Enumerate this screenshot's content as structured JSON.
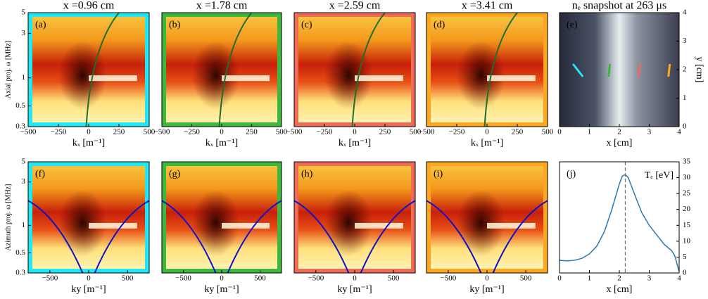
{
  "chart_data": [
    {
      "type": "heatmap",
      "title": "x =0.96 cm",
      "label": "(a)",
      "xlabel": "kₓ [m⁻¹]",
      "ylabel": "Axial proj. ω [MHz]",
      "frame_color": "#22e6f2",
      "curve_color": "#1f6e2a",
      "curve": "parabola",
      "xlim": [
        -500,
        500
      ],
      "xticks": [
        {
          "value": -500,
          "label": "−500"
        },
        {
          "value": -250,
          "label": "−250"
        },
        0,
        250,
        500
      ],
      "ylim": [
        0.3,
        5
      ],
      "yticks": [
        0.3,
        0.5,
        1,
        3,
        5
      ],
      "log_y": true
    },
    {
      "type": "heatmap",
      "title": "x =1.78 cm",
      "label": "(b)",
      "xlabel": "kₓ [m⁻¹]",
      "frame_color": "#3cb83c",
      "curve_color": "#1f6e2a",
      "curve": "parabola",
      "xlim": [
        -500,
        500
      ],
      "xticks": [
        {
          "value": -500,
          "label": "−500"
        },
        {
          "value": -250,
          "label": "−250"
        },
        0,
        250,
        500
      ],
      "ylim": [
        0.3,
        5
      ],
      "yticks": [
        0.3,
        0.5,
        1,
        3,
        5
      ],
      "log_y": true
    },
    {
      "type": "heatmap",
      "title": "x =2.59 cm",
      "label": "(c)",
      "xlabel": "kₓ [m⁻¹]",
      "frame_color": "#f06a58",
      "curve_color": "#1f6e2a",
      "curve": "parabola",
      "xlim": [
        -500,
        500
      ],
      "xticks": [
        {
          "value": -500,
          "label": "−500"
        },
        {
          "value": -250,
          "label": "−250"
        },
        0,
        250,
        500
      ],
      "ylim": [
        0.3,
        5
      ],
      "yticks": [
        0.3,
        0.5,
        1,
        3,
        5
      ],
      "log_y": true
    },
    {
      "type": "heatmap",
      "title": "x =3.41 cm",
      "label": "(d)",
      "xlabel": "kₓ [m⁻¹]",
      "frame_color": "#ffa51e",
      "curve_color": "#1f6e2a",
      "curve": "parabola",
      "xlim": [
        -500,
        500
      ],
      "xticks": [
        {
          "value": -500,
          "label": "−500"
        },
        {
          "value": -250,
          "label": "−250"
        },
        0,
        250,
        500
      ],
      "ylim": [
        0.3,
        5
      ],
      "yticks": [
        0.3,
        0.5,
        1,
        3,
        5
      ],
      "log_y": true
    },
    {
      "type": "image",
      "title": "nₑ snapshot at 263 μs",
      "label": "(e)",
      "xlabel": "x [cm]",
      "ylabel": "y [cm]",
      "y_axis": "right",
      "arrow_colors": [
        "#22e6f2",
        "#3cb83c",
        "#f06a58",
        "#ffa51e"
      ],
      "xlim": [
        0,
        4
      ],
      "xticks": [
        0,
        1,
        2,
        3,
        4
      ],
      "ylim": [
        0,
        4
      ],
      "yticks": [
        0,
        1,
        2,
        3,
        4
      ]
    },
    {
      "type": "heatmap",
      "label": "(f)",
      "xlabel": "ky [m⁻¹]",
      "ylabel": "Azimuth proj. ω [MHz]",
      "frame_color": "#22e6f2",
      "curve_color": "#1010c8",
      "curve": "cones",
      "xlim": [
        -780,
        780
      ],
      "xticks": [
        {
          "value": -500,
          "label": "−500"
        },
        0,
        500
      ],
      "ylim": [
        0.3,
        5
      ],
      "yticks": [
        0.3,
        0.5,
        1,
        3,
        5
      ],
      "log_y": true
    },
    {
      "type": "heatmap",
      "label": "(g)",
      "xlabel": "ky [m⁻¹]",
      "frame_color": "#3cb83c",
      "curve_color": "#1010c8",
      "curve": "cones",
      "xlim": [
        -780,
        780
      ],
      "xticks": [
        {
          "value": -500,
          "label": "−500"
        },
        0,
        500
      ],
      "ylim": [
        0.3,
        5
      ],
      "yticks": [
        0.3,
        0.5,
        1,
        3,
        5
      ],
      "log_y": true
    },
    {
      "type": "heatmap",
      "label": "(h)",
      "xlabel": "ky [m⁻¹]",
      "frame_color": "#f06a58",
      "curve_color": "#1010c8",
      "curve": "cones",
      "xlim": [
        -780,
        780
      ],
      "xticks": [
        {
          "value": -500,
          "label": "−500"
        },
        0,
        500
      ],
      "ylim": [
        0.3,
        5
      ],
      "yticks": [
        0.3,
        0.5,
        1,
        3,
        5
      ],
      "log_y": true
    },
    {
      "type": "heatmap",
      "label": "(i)",
      "xlabel": "ky [m⁻¹]",
      "frame_color": "#ffa51e",
      "curve_color": "#1010c8",
      "curve": "cones",
      "xlim": [
        -780,
        780
      ],
      "xticks": [
        {
          "value": -500,
          "label": "−500"
        },
        0,
        500
      ],
      "ylim": [
        0.3,
        5
      ],
      "yticks": [
        0.3,
        0.5,
        1,
        3,
        5
      ],
      "log_y": true
    },
    {
      "type": "line",
      "label": "(j)",
      "xlabel": "x [cm]",
      "annotation": "Tₑ [eV]",
      "y_axis": "right",
      "color": "#2a7ab0",
      "vline": 2.2,
      "x": [
        0,
        0.25,
        0.5,
        0.75,
        1,
        1.25,
        1.5,
        1.75,
        2,
        2.1,
        2.2,
        2.3,
        2.5,
        2.75,
        3,
        3.25,
        3.5,
        3.75,
        3.85,
        4
      ],
      "values": [
        4,
        3.8,
        4,
        4.6,
        6,
        8.5,
        13,
        20,
        28,
        30.5,
        31,
        30,
        25,
        19,
        15,
        12,
        9,
        7,
        5.5,
        0.5
      ],
      "xlim": [
        0,
        4
      ],
      "xticks": [
        0,
        1,
        2,
        3,
        4
      ],
      "ylim": [
        0,
        35
      ],
      "yticks": [
        0,
        5,
        10,
        15,
        20,
        25,
        30,
        35
      ]
    }
  ]
}
